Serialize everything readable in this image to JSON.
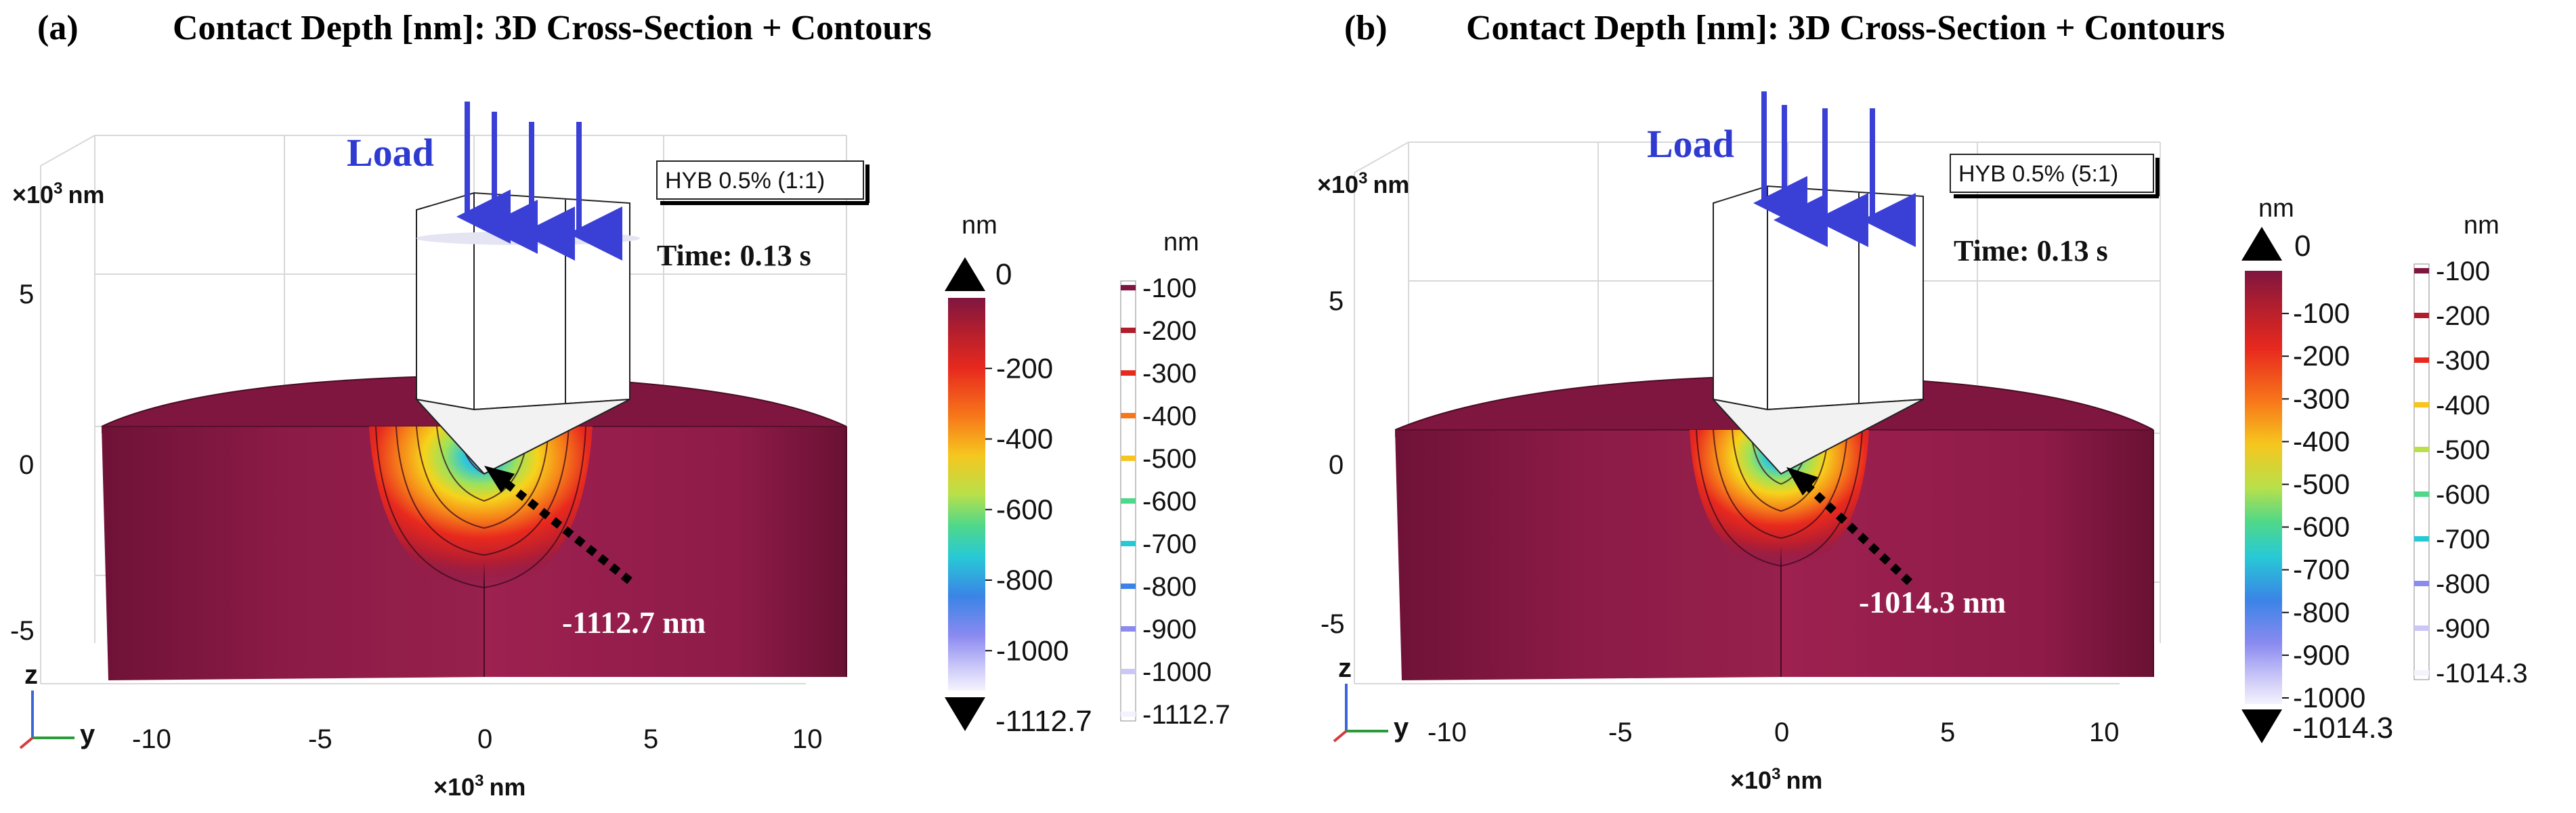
{
  "panels": [
    {
      "label": "(a)",
      "title": "Contact Depth [nm]: 3D Cross-Section + Contours",
      "load_label": "Load",
      "legend_box": "HYB 0.5% (1:1)",
      "time_label": "Time: 0.13 s",
      "min_annotation": "-1112.7 nm",
      "axis": {
        "z_ticks": [
          "5",
          "0",
          "-5"
        ],
        "x_ticks": [
          "-10",
          "-5",
          "0",
          "5",
          "10"
        ],
        "exp_base": "×10",
        "exp_power": "3",
        "unit": "nm",
        "triad_z": "z",
        "triad_y": "y"
      },
      "colorbar_surface": {
        "unit": "nm",
        "max_label": "0",
        "min_label": "-1112.7",
        "ticks": [
          {
            "label": "-200",
            "value": -200
          },
          {
            "label": "-400",
            "value": -400
          },
          {
            "label": "-600",
            "value": -600
          },
          {
            "label": "-800",
            "value": -800
          },
          {
            "label": "-1000",
            "value": -1000
          }
        ],
        "min_value": -1112.7,
        "max_value": 0
      },
      "colorbar_contours": {
        "unit": "nm",
        "levels": [
          "-100",
          "-200",
          "-300",
          "-400",
          "-500",
          "-600",
          "-700",
          "-800",
          "-900",
          "-1000",
          "-1112.7"
        ]
      }
    },
    {
      "label": "(b)",
      "title": "Contact Depth [nm]: 3D Cross-Section + Contours",
      "load_label": "Load",
      "legend_box": "HYB 0.5% (5:1)",
      "time_label": "Time: 0.13 s",
      "min_annotation": "-1014.3 nm",
      "axis": {
        "z_ticks": [
          "5",
          "0",
          "-5"
        ],
        "x_ticks": [
          "-10",
          "-5",
          "0",
          "5",
          "10"
        ],
        "exp_base": "×10",
        "exp_power": "3",
        "unit": "nm",
        "triad_z": "z",
        "triad_y": "y"
      },
      "colorbar_surface": {
        "unit": "nm",
        "max_label": "0",
        "min_label": "-1014.3",
        "ticks": [
          {
            "label": "-100",
            "value": -100
          },
          {
            "label": "-200",
            "value": -200
          },
          {
            "label": "-300",
            "value": -300
          },
          {
            "label": "-400",
            "value": -400
          },
          {
            "label": "-500",
            "value": -500
          },
          {
            "label": "-600",
            "value": -600
          },
          {
            "label": "-700",
            "value": -700
          },
          {
            "label": "-800",
            "value": -800
          },
          {
            "label": "-900",
            "value": -900
          },
          {
            "label": "-1000",
            "value": -1000
          }
        ],
        "min_value": -1014.3,
        "max_value": 0
      },
      "colorbar_contours": {
        "unit": "nm",
        "levels": [
          "-100",
          "-200",
          "-300",
          "-400",
          "-500",
          "-600",
          "-700",
          "-800",
          "-900",
          "-1014.3"
        ]
      }
    }
  ],
  "colors": {
    "solid": "#8a1a45",
    "solid_dark": "#6d1236",
    "solid_top": "#7f1640",
    "arrow_blue": "#3a3fd6",
    "load_text": "#2f3bd0"
  }
}
